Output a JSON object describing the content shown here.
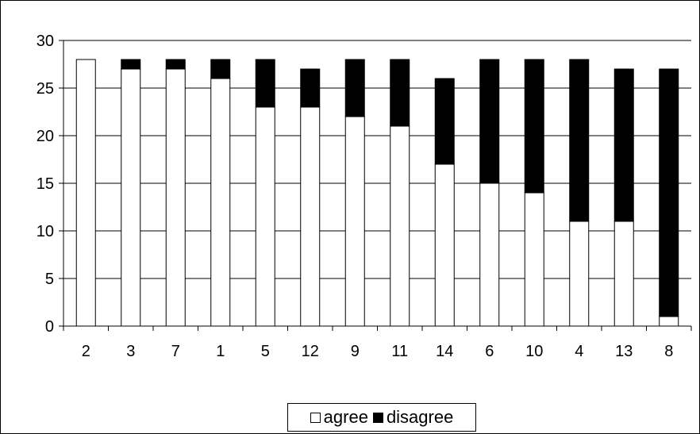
{
  "chart_data": {
    "type": "bar",
    "stacked": true,
    "categories": [
      "2",
      "3",
      "7",
      "1",
      "5",
      "12",
      "9",
      "11",
      "14",
      "6",
      "10",
      "4",
      "13",
      "8"
    ],
    "series": [
      {
        "name": "agree",
        "values": [
          28,
          27,
          27,
          26,
          23,
          23,
          22,
          21,
          17,
          15,
          14,
          11,
          11,
          1
        ]
      },
      {
        "name": "disagree",
        "values": [
          0,
          1,
          1,
          2,
          5,
          4,
          6,
          7,
          9,
          13,
          14,
          17,
          16,
          26
        ]
      }
    ],
    "y_ticks": [
      "0",
      "5",
      "10",
      "15",
      "20",
      "25",
      "30"
    ],
    "ylim": [
      0,
      30
    ],
    "grid": true,
    "legend_position": "bottom",
    "colors": {
      "agree": "#ffffff",
      "disagree": "#000000",
      "outline": "#000000"
    }
  }
}
